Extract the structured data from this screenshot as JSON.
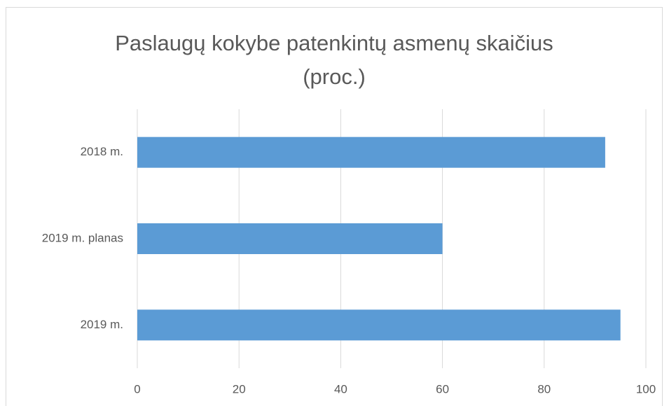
{
  "chart_data": {
    "type": "bar",
    "orientation": "horizontal",
    "title": "Paslaugų kokybe patenkintų asmenų skaičius (proc.)",
    "categories": [
      "2018 m.",
      "2019 m. planas",
      "2019 m."
    ],
    "values": [
      92,
      60,
      95
    ],
    "color": "#5b9bd5",
    "xlim": [
      0,
      100
    ],
    "xticks": [
      0,
      20,
      40,
      60,
      80,
      100
    ],
    "grid": true
  }
}
